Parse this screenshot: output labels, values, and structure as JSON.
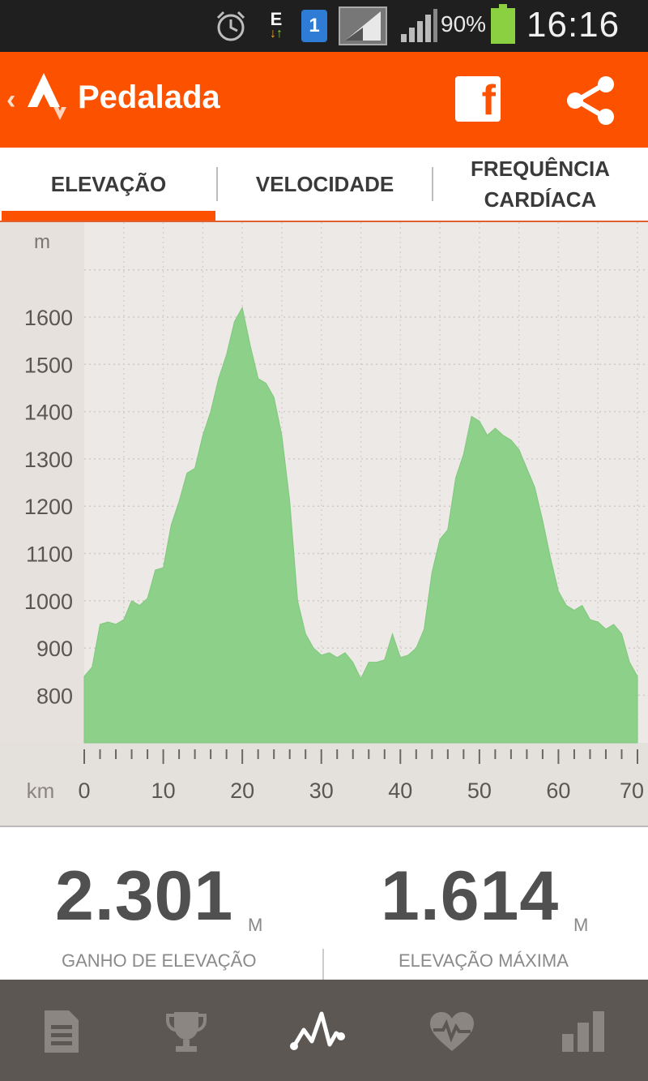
{
  "status_bar": {
    "e_indicator": "E",
    "sim_number": "1",
    "battery_percent": "90%",
    "time": "16:16",
    "icons": [
      "alarm-clock-icon",
      "edge-data-icon",
      "sim-card-icon",
      "signal-icon",
      "signal-icon",
      "battery-icon"
    ]
  },
  "app_bar": {
    "back_symbol": "‹",
    "title": "Pedalada",
    "facebook_label": "f",
    "color": "#fc5200"
  },
  "tabs": [
    {
      "label": "ELEVAÇÃO",
      "active": true
    },
    {
      "label": "VELOCIDADE",
      "active": false
    },
    {
      "label": "FREQUÊNCIA CARDÍACA",
      "active": false
    }
  ],
  "chart_data": {
    "type": "area",
    "ylabel": "m",
    "xlabel": "km",
    "ylim": [
      700,
      1800
    ],
    "xlim": [
      0,
      70
    ],
    "y_ticks": [
      800,
      900,
      1000,
      1100,
      1200,
      1300,
      1400,
      1500,
      1600
    ],
    "x_ticks": [
      0,
      10,
      20,
      30,
      40,
      50,
      60,
      70
    ],
    "grid": true,
    "fill_color": "#8dd08a",
    "series": [
      {
        "x": [
          0,
          1,
          2,
          3,
          4,
          5,
          6,
          7,
          8,
          9,
          10,
          11,
          12,
          13,
          14,
          15,
          16,
          17,
          18,
          19,
          20,
          21,
          22,
          23,
          24,
          25,
          26,
          27,
          28,
          29,
          30,
          31,
          32,
          33,
          34,
          35,
          36,
          37,
          38,
          39,
          40,
          41,
          42,
          43,
          44,
          45,
          46,
          47,
          48,
          49,
          50,
          51,
          52,
          53,
          54,
          55,
          56,
          57,
          58,
          59,
          60,
          61,
          62,
          63,
          64,
          65,
          66,
          67,
          68,
          69,
          70
        ],
        "values": [
          840,
          860,
          950,
          955,
          950,
          960,
          1000,
          990,
          1005,
          1065,
          1070,
          1160,
          1210,
          1270,
          1280,
          1350,
          1400,
          1470,
          1520,
          1590,
          1620,
          1540,
          1470,
          1460,
          1430,
          1350,
          1210,
          1000,
          930,
          900,
          885,
          890,
          880,
          890,
          870,
          835,
          870,
          870,
          875,
          930,
          880,
          885,
          900,
          940,
          1060,
          1130,
          1150,
          1260,
          1310,
          1390,
          1380,
          1350,
          1365,
          1350,
          1340,
          1320,
          1280,
          1240,
          1170,
          1090,
          1020,
          990,
          980,
          990,
          960,
          955,
          940,
          950,
          930,
          870,
          840
        ]
      }
    ]
  },
  "stats": [
    {
      "value": "2.301",
      "unit": "M",
      "label": "GANHO DE ELEVAÇÃO"
    },
    {
      "value": "1.614",
      "unit": "M",
      "label": "ELEVAÇÃO MÁXIMA"
    }
  ],
  "bottom_nav": {
    "items": [
      "document-icon",
      "trophy-icon",
      "elevation-chart-icon",
      "heart-rate-icon",
      "bar-chart-icon"
    ],
    "active_index": 2
  }
}
